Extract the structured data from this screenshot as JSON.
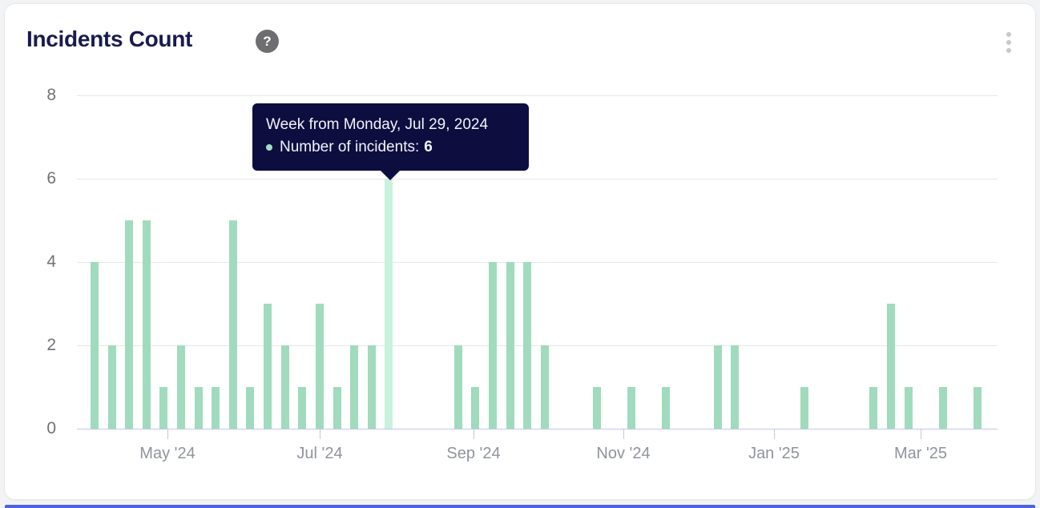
{
  "header": {
    "title": "Incidents Count",
    "help_glyph": "?"
  },
  "tooltip": {
    "title": "Week from Monday, Jul 29, 2024",
    "series_label": "Number of incidents:",
    "value": "6"
  },
  "chart_data": {
    "type": "bar",
    "title": "Incidents Count",
    "xlabel": "",
    "ylabel": "",
    "ylim": [
      0,
      8
    ],
    "y_ticks": [
      0,
      2,
      4,
      6,
      8
    ],
    "x_tick_labels": [
      "May '24",
      "Jul '24",
      "Sep '24",
      "Nov '24",
      "Jan '25",
      "Mar '25"
    ],
    "grid": true,
    "bar_color": "#a0dbbd",
    "highlight_color": "#c8f2dd",
    "highlighted_index": 17,
    "weeks": [
      "2024-04-01",
      "2024-04-08",
      "2024-04-15",
      "2024-04-22",
      "2024-04-29",
      "2024-05-06",
      "2024-05-13",
      "2024-05-20",
      "2024-05-27",
      "2024-06-03",
      "2024-06-10",
      "2024-06-17",
      "2024-06-24",
      "2024-07-01",
      "2024-07-08",
      "2024-07-15",
      "2024-07-22",
      "2024-07-29",
      "2024-08-05",
      "2024-08-12",
      "2024-08-19",
      "2024-08-26",
      "2024-09-02",
      "2024-09-09",
      "2024-09-16",
      "2024-09-23",
      "2024-09-30",
      "2024-10-07",
      "2024-10-14",
      "2024-10-21",
      "2024-10-28",
      "2024-11-04",
      "2024-11-11",
      "2024-11-18",
      "2024-11-25",
      "2024-12-02",
      "2024-12-09",
      "2024-12-16",
      "2024-12-23",
      "2024-12-30",
      "2025-01-06",
      "2025-01-13",
      "2025-01-20",
      "2025-01-27",
      "2025-02-03",
      "2025-02-10",
      "2025-02-17",
      "2025-02-24",
      "2025-03-03",
      "2025-03-10",
      "2025-03-17",
      "2025-03-24"
    ],
    "values": [
      4,
      2,
      5,
      5,
      1,
      2,
      1,
      1,
      5,
      1,
      3,
      2,
      1,
      3,
      1,
      2,
      2,
      6,
      0,
      0,
      0,
      2,
      1,
      4,
      4,
      4,
      2,
      0,
      0,
      1,
      0,
      1,
      0,
      1,
      0,
      0,
      2,
      2,
      0,
      0,
      0,
      1,
      0,
      0,
      0,
      1,
      3,
      1,
      0,
      1,
      0,
      1
    ]
  }
}
